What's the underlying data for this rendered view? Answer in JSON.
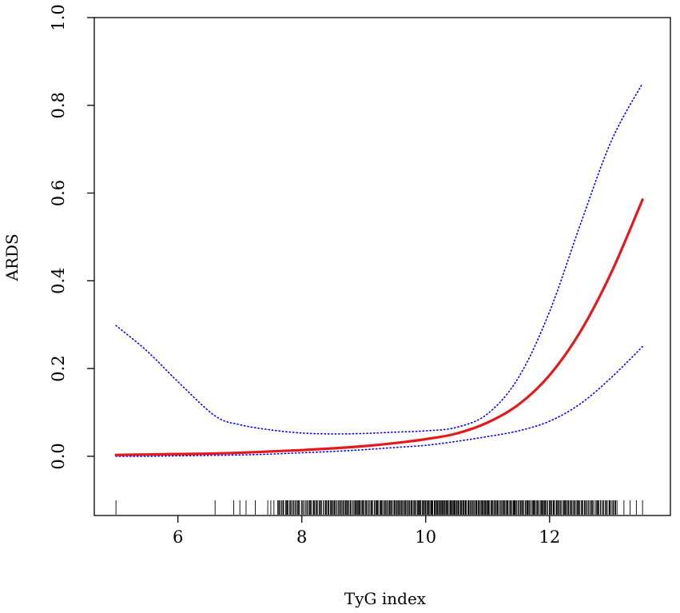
{
  "chart_data": {
    "type": "line",
    "title": "",
    "xlabel": "TyG index",
    "ylabel": "ARDS",
    "xlim": [
      4.65,
      13.95
    ],
    "ylim": [
      -0.135,
      1.0
    ],
    "x_ticks": [
      6,
      8,
      10,
      12
    ],
    "x_tick_labels": [
      "6",
      "8",
      "10",
      "12"
    ],
    "y_ticks": [
      0.0,
      0.2,
      0.4,
      0.6,
      0.8,
      1.0
    ],
    "y_tick_labels": [
      "0.0",
      "0.2",
      "0.4",
      "0.6",
      "0.8",
      "1.0"
    ],
    "grid": false,
    "legend": "none",
    "series": [
      {
        "role": "estimate",
        "color": "#e31a1c",
        "style": "solid",
        "x": [
          5.0,
          5.5,
          6.0,
          6.5,
          7.0,
          7.5,
          8.0,
          8.5,
          9.0,
          9.5,
          10.0,
          10.5,
          11.0,
          11.5,
          12.0,
          12.5,
          13.0,
          13.5
        ],
        "y": [
          0.003,
          0.004,
          0.005,
          0.006,
          0.008,
          0.011,
          0.014,
          0.018,
          0.023,
          0.03,
          0.039,
          0.052,
          0.077,
          0.118,
          0.185,
          0.285,
          0.42,
          0.585
        ]
      },
      {
        "role": "upper-ci",
        "color": "#0000ff",
        "style": "dotted",
        "x": [
          5.0,
          5.5,
          6.0,
          6.6,
          7.0,
          7.5,
          8.0,
          8.5,
          9.0,
          9.5,
          10.0,
          10.5,
          11.0,
          11.5,
          12.0,
          12.5,
          13.0,
          13.5
        ],
        "y": [
          0.298,
          0.24,
          0.17,
          0.092,
          0.072,
          0.06,
          0.053,
          0.051,
          0.052,
          0.055,
          0.058,
          0.066,
          0.097,
          0.18,
          0.33,
          0.53,
          0.72,
          0.85
        ]
      },
      {
        "role": "lower-ci",
        "color": "#0000ff",
        "style": "dotted",
        "x": [
          5.0,
          5.5,
          6.0,
          6.5,
          7.0,
          7.5,
          8.0,
          8.5,
          9.0,
          9.5,
          10.0,
          10.5,
          11.0,
          11.5,
          12.0,
          12.5,
          13.0,
          13.5
        ],
        "y": [
          0.0,
          0.0,
          0.001,
          0.002,
          0.003,
          0.005,
          0.008,
          0.011,
          0.015,
          0.02,
          0.025,
          0.034,
          0.045,
          0.058,
          0.08,
          0.12,
          0.18,
          0.25
        ]
      }
    ],
    "rug": {
      "color": "#000000",
      "isolated_x": [
        5.0,
        6.6,
        6.9,
        7.0,
        7.1,
        7.25,
        7.45,
        7.5,
        7.55,
        13.2,
        13.3,
        13.4,
        13.5
      ],
      "dense_range": [
        7.6,
        13.1
      ],
      "dense_count": 360
    }
  }
}
